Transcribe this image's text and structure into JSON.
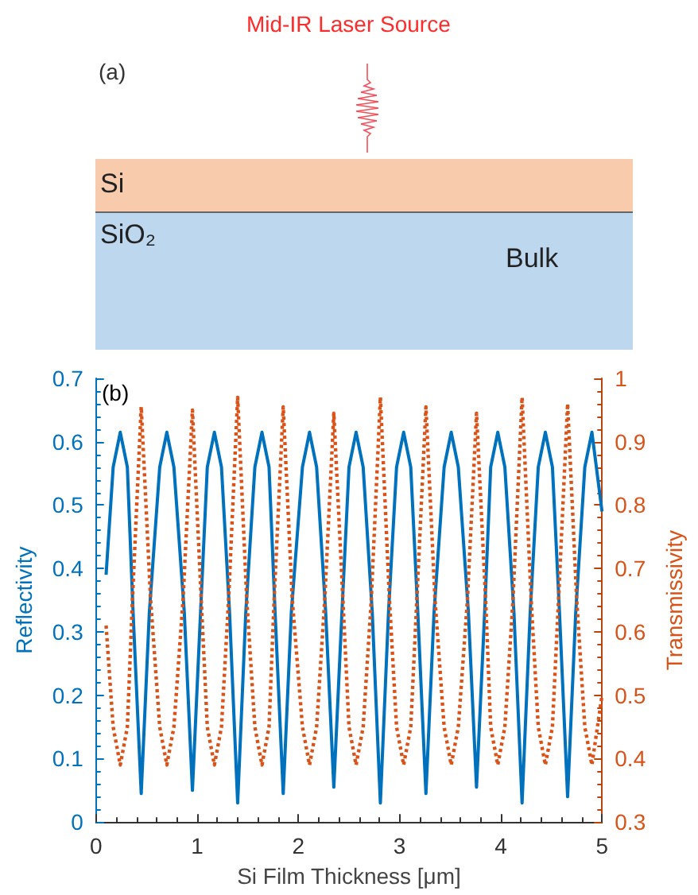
{
  "chart_data": [
    {
      "type": "other",
      "title": "Mid-IR Laser Source",
      "annotations": [
        "(a)",
        "Si",
        "SiO₂",
        "Bulk"
      ]
    },
    {
      "type": "line",
      "xlabel": "Si Film Thickness [μm]",
      "ylabel": "Reflectivity",
      "y2label": "Transmissivity",
      "annotations": [
        "(b)"
      ],
      "xlim": [
        0,
        5
      ],
      "xticks": [
        0,
        1,
        2,
        3,
        4,
        5
      ],
      "ylim": [
        0,
        0.7
      ],
      "yticks": [
        0,
        0.1,
        0.2,
        0.3,
        0.4,
        0.5,
        0.6,
        0.7
      ],
      "y2lim": [
        0.3,
        1
      ],
      "y2ticks": [
        0.3,
        0.4,
        0.5,
        0.6,
        0.7,
        0.8,
        0.9,
        1
      ],
      "grid": false,
      "marker": "none",
      "series": [
        {
          "color": "#0072bd",
          "line_style": "solid",
          "x": [
            0.1,
            0.17,
            0.24,
            0.31,
            0.367,
            0.447,
            0.527,
            0.63,
            0.7,
            0.77,
            0.873,
            0.953,
            1.033,
            1.1,
            1.17,
            1.24,
            1.32,
            1.4,
            1.48,
            1.57,
            1.64,
            1.71,
            1.77,
            1.85,
            1.93,
            2.04,
            2.11,
            2.18,
            2.27,
            2.35,
            2.43,
            2.5,
            2.57,
            2.64,
            2.73,
            2.81,
            2.89,
            2.97,
            3.04,
            3.11,
            3.18,
            3.26,
            3.34,
            3.44,
            3.51,
            3.58,
            3.68,
            3.76,
            3.84,
            3.9,
            3.97,
            4.04,
            4.13,
            4.21,
            4.29,
            4.37,
            4.44,
            4.51,
            4.58,
            4.66,
            4.74,
            4.83,
            4.9,
            5.0
          ],
          "values": [
            0.39,
            0.56,
            0.615,
            0.56,
            0.33,
            0.045,
            0.33,
            0.56,
            0.615,
            0.56,
            0.33,
            0.05,
            0.33,
            0.56,
            0.615,
            0.56,
            0.33,
            0.03,
            0.33,
            0.56,
            0.615,
            0.56,
            0.33,
            0.045,
            0.33,
            0.56,
            0.615,
            0.56,
            0.33,
            0.055,
            0.33,
            0.56,
            0.615,
            0.56,
            0.33,
            0.03,
            0.33,
            0.56,
            0.615,
            0.56,
            0.33,
            0.045,
            0.33,
            0.56,
            0.615,
            0.56,
            0.33,
            0.055,
            0.33,
            0.56,
            0.615,
            0.56,
            0.33,
            0.03,
            0.33,
            0.56,
            0.615,
            0.56,
            0.33,
            0.04,
            0.33,
            0.56,
            0.615,
            0.49
          ]
        },
        {
          "color": "#d95319",
          "line_style": "dotted",
          "axis": "y2",
          "x": [
            0.1,
            0.17,
            0.24,
            0.31,
            0.36,
            0.447,
            0.54,
            0.63,
            0.7,
            0.77,
            0.86,
            0.953,
            1.04,
            1.1,
            1.17,
            1.24,
            1.31,
            1.4,
            1.49,
            1.57,
            1.64,
            1.71,
            1.76,
            1.85,
            1.94,
            2.04,
            2.11,
            2.18,
            2.26,
            2.35,
            2.44,
            2.5,
            2.57,
            2.64,
            2.72,
            2.81,
            2.9,
            2.97,
            3.04,
            3.11,
            3.17,
            3.26,
            3.35,
            3.44,
            3.51,
            3.58,
            3.67,
            3.76,
            3.85,
            3.9,
            3.97,
            4.04,
            4.12,
            4.21,
            4.3,
            4.37,
            4.44,
            4.51,
            4.57,
            4.66,
            4.75,
            4.83,
            4.9,
            5.0
          ],
          "values": [
            0.61,
            0.45,
            0.39,
            0.45,
            0.65,
            0.955,
            0.65,
            0.45,
            0.39,
            0.45,
            0.65,
            0.95,
            0.65,
            0.45,
            0.39,
            0.45,
            0.65,
            0.97,
            0.65,
            0.45,
            0.39,
            0.45,
            0.65,
            0.955,
            0.65,
            0.45,
            0.39,
            0.45,
            0.65,
            0.945,
            0.65,
            0.45,
            0.39,
            0.45,
            0.65,
            0.97,
            0.65,
            0.45,
            0.39,
            0.45,
            0.65,
            0.955,
            0.65,
            0.45,
            0.39,
            0.45,
            0.65,
            0.945,
            0.65,
            0.45,
            0.39,
            0.45,
            0.65,
            0.97,
            0.65,
            0.45,
            0.39,
            0.45,
            0.65,
            0.96,
            0.65,
            0.45,
            0.39,
            0.5
          ]
        }
      ]
    }
  ]
}
